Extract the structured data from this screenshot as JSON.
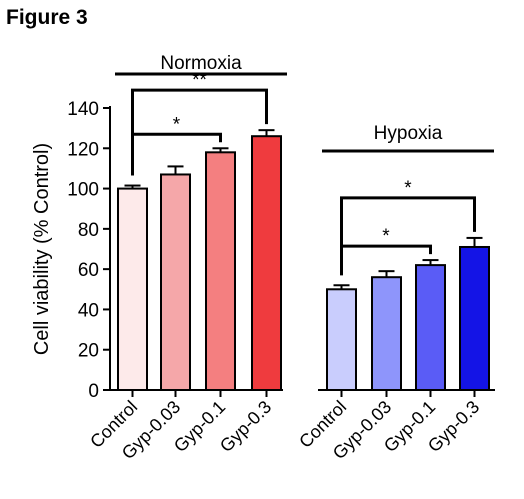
{
  "figure_label": "Figure 3",
  "chart_data": {
    "type": "bar",
    "ylabel": "Cell viability (% Control)",
    "ylim": [
      0,
      140
    ],
    "yticks": [
      0,
      20,
      40,
      60,
      80,
      100,
      120,
      140
    ],
    "grid": false,
    "groups": [
      {
        "name": "Normoxia",
        "categories": [
          "Control",
          "Gyp-0.03",
          "Gyp-0.1",
          "Gyp-0.3"
        ],
        "values": [
          100,
          107,
          118,
          126
        ],
        "errors": [
          1.5,
          4,
          2,
          3
        ],
        "colors": [
          "#fdeaea",
          "#f5a7a9",
          "#f47f80",
          "#ef3b3e"
        ],
        "significance": [
          {
            "from": 0,
            "to": 2,
            "label": "*"
          },
          {
            "from": 0,
            "to": 3,
            "label": "**"
          }
        ]
      },
      {
        "name": "Hypoxia",
        "categories": [
          "Control",
          "Gyp-0.03",
          "Gyp-0.1",
          "Gyp-0.3"
        ],
        "values": [
          50,
          56,
          62,
          71
        ],
        "errors": [
          2,
          3,
          2.5,
          4.5
        ],
        "colors": [
          "#c9cdfd",
          "#8e95fb",
          "#5a5cf6",
          "#1414e6"
        ],
        "significance": [
          {
            "from": 0,
            "to": 2,
            "label": "*"
          },
          {
            "from": 0,
            "to": 3,
            "label": "*"
          }
        ]
      }
    ]
  }
}
